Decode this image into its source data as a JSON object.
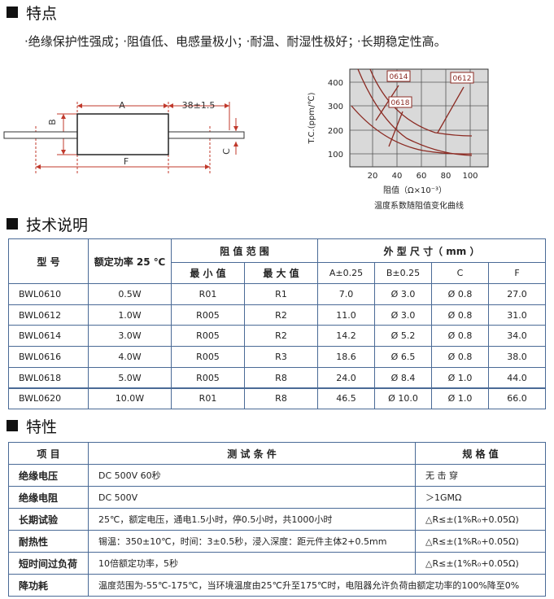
{
  "features": {
    "title": "特点",
    "items": [
      "·绝缘保护性强成；",
      "·阻值低、电感量极小；",
      "·耐温、耐湿性极好；",
      "·长期稳定性高。"
    ]
  },
  "dimension_drawing": {
    "labels": [
      "A",
      "38±1.5",
      "B",
      "C",
      "F"
    ]
  },
  "tc_chart": {
    "y_axis_label": "T.C.(ppm/℃)",
    "x_axis_label": "阻值（Ω×10⁻³）",
    "caption": "温度系数随阻值变化曲线",
    "yticks": [
      "400",
      "300",
      "200",
      "100"
    ],
    "xticks": [
      "20",
      "40",
      "60",
      "80",
      "100"
    ],
    "curve_labels": [
      "0614",
      "0612",
      "0618"
    ]
  },
  "spec_table": {
    "title": "技术说明",
    "header": {
      "model": "型 号",
      "power": "额定功率 25 ℃",
      "range": "阻 值 范 围",
      "range_min": "最 小 值",
      "range_max": "最 大 值",
      "dims": "外 型 尺 寸（ mm ）",
      "dim_cols": [
        "A±0.25",
        "B±0.25",
        "C",
        "F"
      ]
    },
    "rows": [
      [
        "BWL0610",
        "0.5W",
        "R01",
        "R1",
        "7.0",
        "Ø 3.0",
        "Ø 0.8",
        "27.0"
      ],
      [
        "BWL0612",
        "1.0W",
        "R005",
        "R2",
        "11.0",
        "Ø 3.0",
        "Ø 0.8",
        "31.0"
      ],
      [
        "BWL0614",
        "3.0W",
        "R005",
        "R2",
        "14.2",
        "Ø 5.2",
        "Ø 0.8",
        "34.0"
      ],
      [
        "BWL0616",
        "4.0W",
        "R005",
        "R3",
        "18.6",
        "Ø 6.5",
        "Ø 0.8",
        "38.0"
      ],
      [
        "BWL0618",
        "5.0W",
        "R005",
        "R8",
        "24.0",
        "Ø 8.4",
        "Ø 1.0",
        "44.0"
      ],
      [
        "BWL0620",
        "10.0W",
        "R01",
        "R8",
        "46.5",
        "Ø 10.0",
        "Ø 1.0",
        "66.0"
      ]
    ]
  },
  "props_table": {
    "title": "特性",
    "header": [
      "项 目",
      "测 试 条 件",
      "规 格 值"
    ],
    "rows": [
      [
        "绝缘电压",
        "DC  500V  60秒",
        "无 击 穿"
      ],
      [
        "绝缘电阻",
        "DC  500V",
        "＞1GMΩ"
      ],
      [
        "长期试验",
        "25℃，额定电压，通电1.5小时，停0.5小时，共1000小时",
        "△R≤±(1%R₀+0.05Ω)"
      ],
      [
        "耐热性",
        "锡温：350±10℃，时间：3±0.5秒，浸入深度：距元件主体2+0.5mm",
        "△R≤±(1%R₀+0.05Ω)"
      ],
      [
        "短时间过负荷",
        "10倍额定功率，5秒",
        "△R≤±(1%R₀+0.05Ω)"
      ],
      [
        "降功耗",
        "温度范围为-55℃-175℃，当环境温度由25℃升至175℃时，电阻器允许负荷由额定功率的100%降至0%"
      ]
    ]
  }
}
